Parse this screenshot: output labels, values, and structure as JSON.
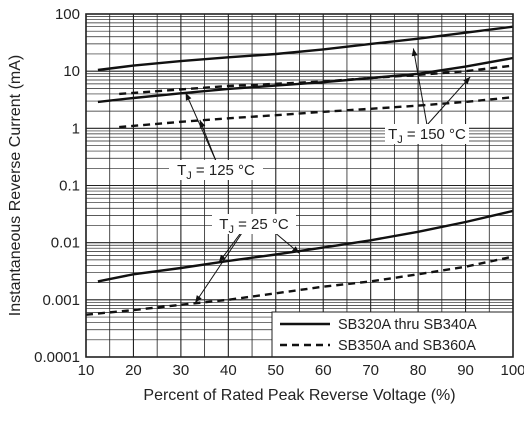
{
  "chart_data": {
    "type": "line",
    "xlabel": "Percent of Rated Peak Reverse Voltage (%)",
    "ylabel": "Instantaneous Reverse Current (mA)",
    "xlim": [
      10,
      100
    ],
    "ylim": [
      0.0001,
      100
    ],
    "yscale": "log",
    "grid": true,
    "x_ticks": [
      10,
      20,
      30,
      40,
      50,
      60,
      70,
      80,
      90,
      100
    ],
    "y_ticks": [
      {
        "value": 0.0001,
        "label": "0.0001"
      },
      {
        "value": 0.001,
        "label": "0.001"
      },
      {
        "value": 0.01,
        "label": "0.01"
      },
      {
        "value": 0.1,
        "label": "0.1"
      },
      {
        "value": 1,
        "label": "1"
      },
      {
        "value": 10,
        "label": "10"
      },
      {
        "value": 100,
        "label": "100"
      }
    ],
    "legend_position": "bottom-right",
    "legend": [
      {
        "label": "SB320A thru SB340A",
        "style": "solid"
      },
      {
        "label": "SB350A and SB360A",
        "style": "dashed"
      }
    ],
    "series": [
      {
        "group": "SB320A thru SB340A",
        "condition": "TJ = 150 °C",
        "style": "solid",
        "points": [
          [
            12.5,
            10.5
          ],
          [
            20,
            12.5
          ],
          [
            30,
            15
          ],
          [
            40,
            17.5
          ],
          [
            50,
            20
          ],
          [
            60,
            24
          ],
          [
            70,
            30
          ],
          [
            80,
            37
          ],
          [
            90,
            47
          ],
          [
            100,
            60
          ]
        ]
      },
      {
        "group": "SB320A thru SB340A",
        "condition": "TJ = 125 °C",
        "style": "solid",
        "points": [
          [
            12.5,
            2.9
          ],
          [
            20,
            3.4
          ],
          [
            30,
            4.1
          ],
          [
            40,
            4.9
          ],
          [
            50,
            5.6
          ],
          [
            60,
            6.4
          ],
          [
            70,
            7.6
          ],
          [
            80,
            9
          ],
          [
            90,
            12
          ],
          [
            100,
            17
          ]
        ]
      },
      {
        "group": "SB350A and SB360A",
        "condition": "TJ = 150 °C",
        "style": "dashed",
        "points": [
          [
            17,
            4
          ],
          [
            30,
            4.8
          ],
          [
            40,
            5.5
          ],
          [
            50,
            6
          ],
          [
            60,
            6.6
          ],
          [
            70,
            7.6
          ],
          [
            80,
            8.6
          ],
          [
            90,
            10
          ],
          [
            100,
            12.5
          ]
        ]
      },
      {
        "group": "SB350A and SB360A",
        "condition": "TJ = 125 °C",
        "style": "dashed",
        "points": [
          [
            17,
            1.05
          ],
          [
            30,
            1.3
          ],
          [
            40,
            1.5
          ],
          [
            50,
            1.7
          ],
          [
            60,
            1.95
          ],
          [
            70,
            2.2
          ],
          [
            80,
            2.5
          ],
          [
            90,
            2.9
          ],
          [
            100,
            3.5
          ]
        ]
      },
      {
        "group": "SB320A thru SB340A",
        "condition": "TJ = 25 °C",
        "style": "solid",
        "points": [
          [
            12.5,
            0.0021
          ],
          [
            20,
            0.0028
          ],
          [
            30,
            0.0036
          ],
          [
            40,
            0.0048
          ],
          [
            50,
            0.0062
          ],
          [
            60,
            0.0082
          ],
          [
            70,
            0.011
          ],
          [
            80,
            0.0155
          ],
          [
            90,
            0.023
          ],
          [
            100,
            0.036
          ]
        ]
      },
      {
        "group": "SB350A and SB360A",
        "condition": "TJ = 25 °C",
        "style": "dashed",
        "points": [
          [
            10,
            0.00055
          ],
          [
            20,
            0.00066
          ],
          [
            30,
            0.00082
          ],
          [
            40,
            0.001
          ],
          [
            50,
            0.0013
          ],
          [
            60,
            0.0017
          ],
          [
            70,
            0.0021
          ],
          [
            80,
            0.0028
          ],
          [
            90,
            0.0038
          ],
          [
            100,
            0.0057
          ]
        ]
      }
    ],
    "annotations": [
      {
        "label_main": "T",
        "label_sub": "J",
        "label_rest": " = 150 °C",
        "targets": [
          [
            79,
            25
          ],
          [
            91,
            8
          ]
        ]
      },
      {
        "label_main": "T",
        "label_sub": "J",
        "label_rest": " = 125 °C",
        "targets": [
          [
            31,
            4.2
          ],
          [
            34,
            1.4
          ]
        ]
      },
      {
        "label_main": "T",
        "label_sub": "J",
        "label_rest": " = 25 °C",
        "targets": [
          [
            38,
            0.0045
          ],
          [
            55,
            0.0065
          ],
          [
            33,
            0.00088
          ]
        ]
      }
    ]
  }
}
